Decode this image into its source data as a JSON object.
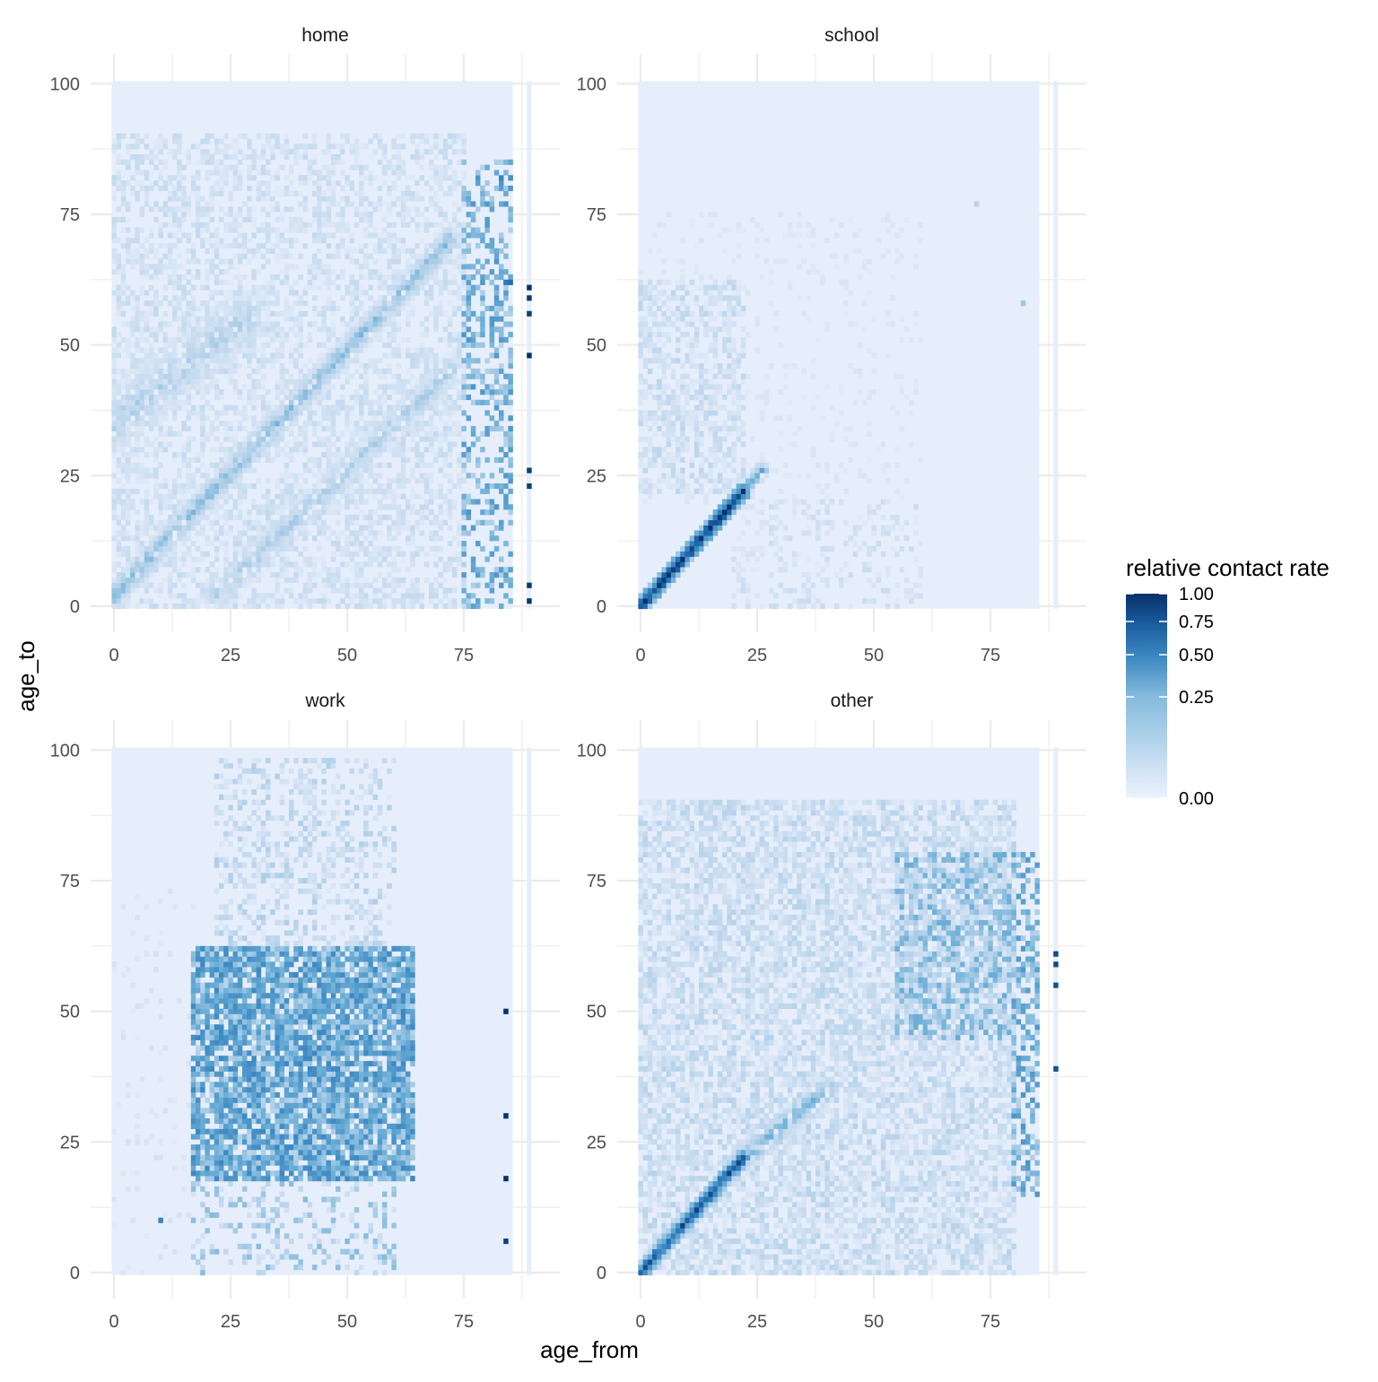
{
  "chart_data": {
    "type": "heatmap",
    "xlabel": "age_from",
    "ylabel": "age_to",
    "xlim": [
      -5,
      95
    ],
    "ylim": [
      -5,
      105
    ],
    "x_ticks": [
      0,
      25,
      50,
      75
    ],
    "y_ticks": [
      0,
      25,
      50,
      75,
      100
    ],
    "panels": [
      {
        "title": "home",
        "features": [
          {
            "kind": "background",
            "value": 0.02
          },
          {
            "kind": "diag",
            "from": [
              0,
              2
            ],
            "to": [
              72,
              70
            ],
            "width": 3,
            "value": 0.22,
            "density": 0.9
          },
          {
            "kind": "diag",
            "from": [
              22,
              2
            ],
            "to": [
              72,
              45
            ],
            "width": 4,
            "value": 0.16,
            "density": 0.8
          },
          {
            "kind": "band",
            "from": [
              0,
              35
            ],
            "to": [
              28,
              55
            ],
            "width": 8,
            "value": 0.15,
            "density": 0.8
          },
          {
            "kind": "cloud",
            "x": [
              0,
              75
            ],
            "y": [
              0,
              90
            ],
            "value": 0.09,
            "density": 0.55
          },
          {
            "kind": "scatter",
            "x": [
              75,
              85
            ],
            "y": [
              0,
              85
            ],
            "value": 0.3,
            "density": 0.4
          },
          {
            "kind": "points",
            "points": [
              [
                84,
                62,
                0.55
              ],
              [
                85,
                62,
                0.6
              ],
              [
                85,
                41,
                0.4
              ],
              [
                89,
                61,
                1.0
              ],
              [
                89,
                59,
                0.95
              ],
              [
                89,
                56,
                0.9
              ],
              [
                89,
                48,
                1.0
              ],
              [
                89,
                26,
                0.9
              ],
              [
                89,
                23,
                0.9
              ],
              [
                89,
                4,
                0.95
              ],
              [
                89,
                1,
                0.95
              ],
              [
                83,
                82,
                0.5
              ],
              [
                85,
                82,
                0.45
              ]
            ]
          }
        ]
      },
      {
        "title": "school",
        "features": [
          {
            "kind": "background",
            "value": 0.02
          },
          {
            "kind": "diag",
            "from": [
              0,
              0
            ],
            "to": [
              22,
              22
            ],
            "width": 1.5,
            "value": 0.85,
            "density": 1.0
          },
          {
            "kind": "diag",
            "from": [
              22,
              22
            ],
            "to": [
              26,
              26
            ],
            "width": 1.5,
            "value": 0.3,
            "density": 0.9
          },
          {
            "kind": "cloud",
            "x": [
              0,
              22
            ],
            "y": [
              22,
              62
            ],
            "value": 0.1,
            "density": 0.55
          },
          {
            "kind": "cloud",
            "x": [
              20,
              60
            ],
            "y": [
              0,
              20
            ],
            "value": 0.08,
            "density": 0.3
          },
          {
            "kind": "cloud",
            "x": [
              0,
              60
            ],
            "y": [
              20,
              75
            ],
            "value": 0.05,
            "density": 0.2
          },
          {
            "kind": "points",
            "points": [
              [
                82,
                58,
                0.2
              ],
              [
                72,
                77,
                0.15
              ]
            ]
          }
        ]
      },
      {
        "title": "work",
        "features": [
          {
            "kind": "background",
            "value": 0.02
          },
          {
            "kind": "cloud",
            "x": [
              17,
              64
            ],
            "y": [
              18,
              62
            ],
            "value": 0.35,
            "density": 0.85
          },
          {
            "kind": "cloud",
            "x": [
              22,
              60
            ],
            "y": [
              62,
              98
            ],
            "value": 0.12,
            "density": 0.35
          },
          {
            "kind": "cloud",
            "x": [
              17,
              60
            ],
            "y": [
              0,
              18
            ],
            "value": 0.18,
            "density": 0.25
          },
          {
            "kind": "cloud",
            "x": [
              0,
              17
            ],
            "y": [
              0,
              75
            ],
            "value": 0.06,
            "density": 0.08
          },
          {
            "kind": "points",
            "points": [
              [
                84,
                50,
                1.0
              ],
              [
                84,
                30,
                1.0
              ],
              [
                84,
                18,
                1.0
              ],
              [
                84,
                6,
                0.9
              ],
              [
                10,
                10,
                0.5
              ]
            ]
          }
        ]
      },
      {
        "title": "other",
        "features": [
          {
            "kind": "background",
            "value": 0.02
          },
          {
            "kind": "diag",
            "from": [
              0,
              0
            ],
            "to": [
              22,
              22
            ],
            "width": 1.5,
            "value": 0.7,
            "density": 1.0
          },
          {
            "kind": "diag",
            "from": [
              22,
              22
            ],
            "to": [
              40,
              35
            ],
            "width": 3,
            "value": 0.25,
            "density": 0.85
          },
          {
            "kind": "cloud",
            "x": [
              0,
              80
            ],
            "y": [
              0,
              90
            ],
            "value": 0.11,
            "density": 0.65
          },
          {
            "kind": "cloud",
            "x": [
              55,
              80
            ],
            "y": [
              45,
              80
            ],
            "value": 0.22,
            "density": 0.6
          },
          {
            "kind": "scatter",
            "x": [
              80,
              85
            ],
            "y": [
              15,
              80
            ],
            "value": 0.3,
            "density": 0.45
          },
          {
            "kind": "points",
            "points": [
              [
                89,
                61,
                0.85
              ],
              [
                89,
                59,
                0.85
              ],
              [
                89,
                55,
                0.8
              ],
              [
                89,
                39,
                0.8
              ]
            ]
          }
        ]
      }
    ],
    "legend": {
      "title": "relative contact rate",
      "ticks": [
        "1.00",
        "0.75",
        "0.50",
        "0.25",
        "0.00"
      ],
      "tick_values": [
        1.0,
        0.75,
        0.5,
        0.25,
        0.0
      ],
      "placement": "right",
      "colors": [
        "#eef2fd",
        "#c6dbef",
        "#6baed6",
        "#2171b5",
        "#08306b"
      ]
    }
  }
}
